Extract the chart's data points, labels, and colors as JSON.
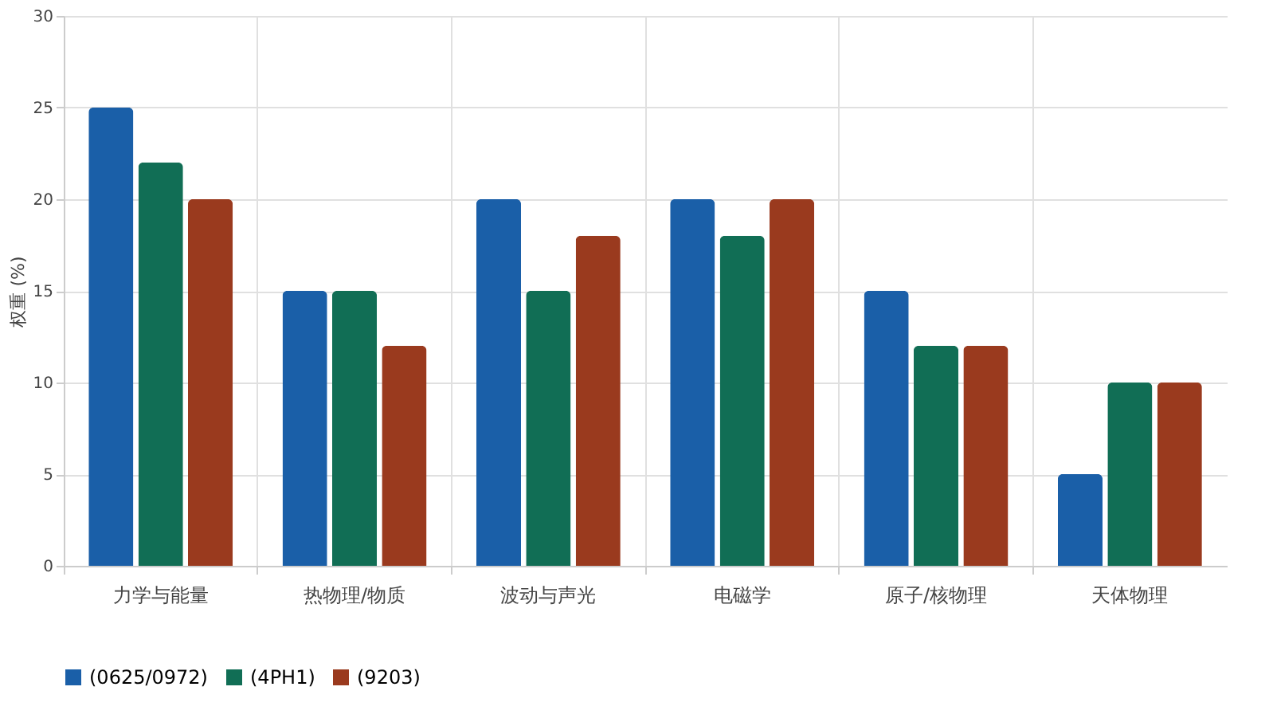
{
  "chart_data": {
    "type": "bar",
    "ylabel": "权重 (%)",
    "categories": [
      "力学与能量",
      "热物理/物质",
      "波动与声光",
      "电磁学",
      "原子/核物理",
      "天体物理"
    ],
    "series": [
      {
        "name": "(0625/0972)",
        "color": "#1a5fa8",
        "values": [
          25,
          15,
          20,
          20,
          15,
          5
        ]
      },
      {
        "name": "(4PH1)",
        "color": "#116e55",
        "values": [
          22,
          15,
          15,
          18,
          12,
          10
        ]
      },
      {
        "name": "(9203)",
        "color": "#9a3a1e",
        "values": [
          20,
          12,
          18,
          20,
          12,
          10
        ]
      }
    ],
    "ylim": [
      0,
      30
    ],
    "yticks": [
      0,
      5,
      10,
      15,
      20,
      25,
      30
    ],
    "grid": true,
    "legend": "bottom left"
  }
}
